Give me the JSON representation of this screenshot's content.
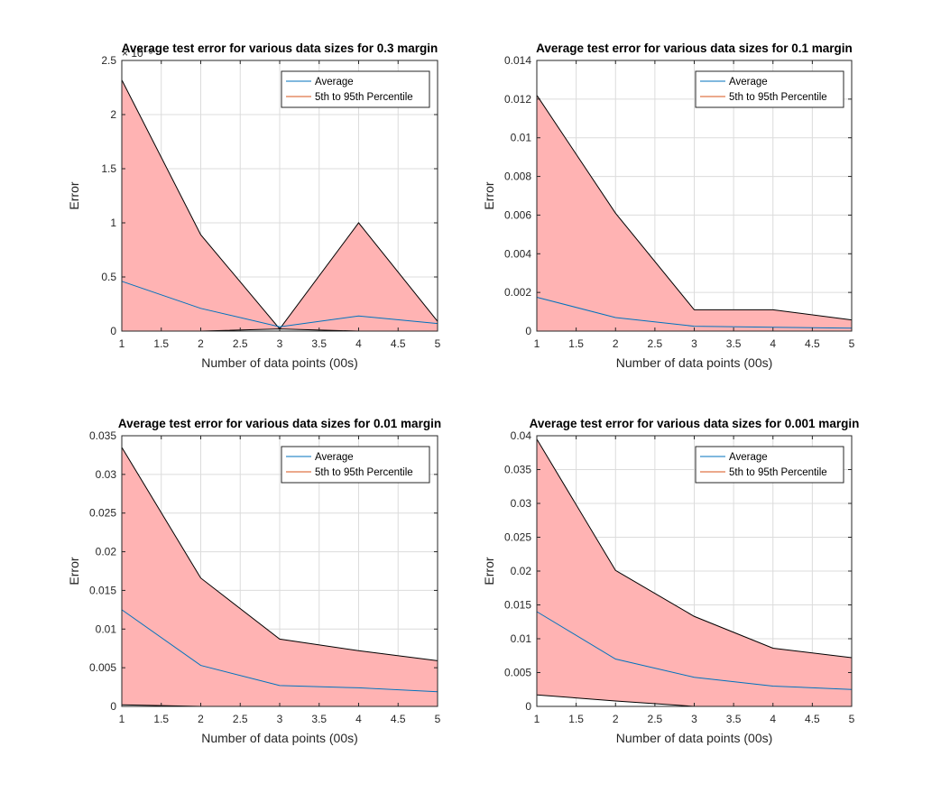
{
  "chart_data": [
    {
      "type": "area",
      "title": "Average test error for various data sizes for 0.3 margin",
      "xlabel": "Number of data points (00s)",
      "ylabel": "Error",
      "exponent_label": "× 10⁻³",
      "xlim": [
        1,
        5
      ],
      "ylim": [
        0,
        0.0025
      ],
      "x": [
        1,
        2,
        3,
        4,
        5
      ],
      "xticks": [
        1,
        1.5,
        2,
        2.5,
        3,
        3.5,
        4,
        4.5,
        5
      ],
      "xtick_labels": [
        "1",
        "1.5",
        "2",
        "2.5",
        "3",
        "3.5",
        "4",
        "4.5",
        "5"
      ],
      "yticks": [
        0,
        0.0005,
        0.001,
        0.0015,
        0.002,
        0.0025
      ],
      "ytick_labels": [
        "0",
        "0.5",
        "1",
        "1.5",
        "2",
        "2.5"
      ],
      "grid": true,
      "legend_position": "top-right",
      "series": [
        {
          "name": "Average",
          "values": [
            0.00046,
            0.00021,
            4e-05,
            0.00014,
            7e-05
          ]
        },
        {
          "name": "5th to 95th Percentile",
          "lower": [
            0,
            0,
            2e-05,
            0,
            0
          ],
          "upper": [
            0.00232,
            0.00089,
            2e-05,
            0.001,
            9e-05
          ]
        }
      ]
    },
    {
      "type": "area",
      "title": "Average test error for various data sizes for 0.1 margin",
      "xlabel": "Number of data points (00s)",
      "ylabel": "Error",
      "exponent_label": "",
      "xlim": [
        1,
        5
      ],
      "ylim": [
        0,
        0.014
      ],
      "x": [
        1,
        2,
        3,
        4,
        5
      ],
      "xticks": [
        1,
        1.5,
        2,
        2.5,
        3,
        3.5,
        4,
        4.5,
        5
      ],
      "xtick_labels": [
        "1",
        "1.5",
        "2",
        "2.5",
        "3",
        "3.5",
        "4",
        "4.5",
        "5"
      ],
      "yticks": [
        0,
        0.002,
        0.004,
        0.006,
        0.008,
        0.01,
        0.012,
        0.014
      ],
      "ytick_labels": [
        "0",
        "0.002",
        "0.004",
        "0.006",
        "0.008",
        "0.01",
        "0.012",
        "0.014"
      ],
      "grid": true,
      "legend_position": "top-right",
      "series": [
        {
          "name": "Average",
          "values": [
            0.00175,
            0.0007,
            0.00025,
            0.0002,
            0.00015
          ]
        },
        {
          "name": "5th to 95th Percentile",
          "lower": [
            0,
            0,
            0,
            0,
            0
          ],
          "upper": [
            0.0122,
            0.0061,
            0.0011,
            0.0011,
            0.00058
          ]
        }
      ]
    },
    {
      "type": "area",
      "title": "Average test error for various data sizes for 0.01 margin",
      "xlabel": "Number of data points (00s)",
      "ylabel": "Error",
      "exponent_label": "",
      "xlim": [
        1,
        5
      ],
      "ylim": [
        0,
        0.035
      ],
      "x": [
        1,
        2,
        3,
        4,
        5
      ],
      "xticks": [
        1,
        1.5,
        2,
        2.5,
        3,
        3.5,
        4,
        4.5,
        5
      ],
      "xtick_labels": [
        "1",
        "1.5",
        "2",
        "2.5",
        "3",
        "3.5",
        "4",
        "4.5",
        "5"
      ],
      "yticks": [
        0,
        0.005,
        0.01,
        0.015,
        0.02,
        0.025,
        0.03,
        0.035
      ],
      "ytick_labels": [
        "0",
        "0.005",
        "0.01",
        "0.015",
        "0.02",
        "0.025",
        "0.03",
        "0.035"
      ],
      "grid": true,
      "legend_position": "top-right",
      "series": [
        {
          "name": "Average",
          "values": [
            0.0125,
            0.0053,
            0.0027,
            0.0024,
            0.0019
          ]
        },
        {
          "name": "5th to 95th Percentile",
          "lower": [
            0.0002,
            0,
            0,
            0,
            0
          ],
          "upper": [
            0.0335,
            0.0166,
            0.0087,
            0.0072,
            0.0059
          ]
        }
      ]
    },
    {
      "type": "area",
      "title": "Average test error for various data sizes for 0.001 margin",
      "xlabel": "Number of data points (00s)",
      "ylabel": "Error",
      "exponent_label": "",
      "xlim": [
        1,
        5
      ],
      "ylim": [
        0,
        0.04
      ],
      "x": [
        1,
        2,
        3,
        4,
        5
      ],
      "xticks": [
        1,
        1.5,
        2,
        2.5,
        3,
        3.5,
        4,
        4.5,
        5
      ],
      "xtick_labels": [
        "1",
        "1.5",
        "2",
        "2.5",
        "3",
        "3.5",
        "4",
        "4.5",
        "5"
      ],
      "yticks": [
        0,
        0.005,
        0.01,
        0.015,
        0.02,
        0.025,
        0.03,
        0.035,
        0.04
      ],
      "ytick_labels": [
        "0",
        "0.005",
        "0.01",
        "0.015",
        "0.02",
        "0.025",
        "0.03",
        "0.035",
        "0.04"
      ],
      "grid": true,
      "legend_position": "top-right",
      "series": [
        {
          "name": "Average",
          "values": [
            0.014,
            0.007,
            0.0043,
            0.003,
            0.0025
          ]
        },
        {
          "name": "5th to 95th Percentile",
          "lower": [
            0.0017,
            0.0008,
            0,
            0,
            0
          ],
          "upper": [
            0.0395,
            0.0201,
            0.0133,
            0.0086,
            0.0072
          ]
        }
      ]
    }
  ],
  "colors": {
    "band_fill": "#ffb3b3",
    "band_edge": "#000000",
    "average_line": "#0072bd",
    "percentile_line": "#d95319",
    "grid": "#dcdcdc",
    "axis": "#262626"
  }
}
